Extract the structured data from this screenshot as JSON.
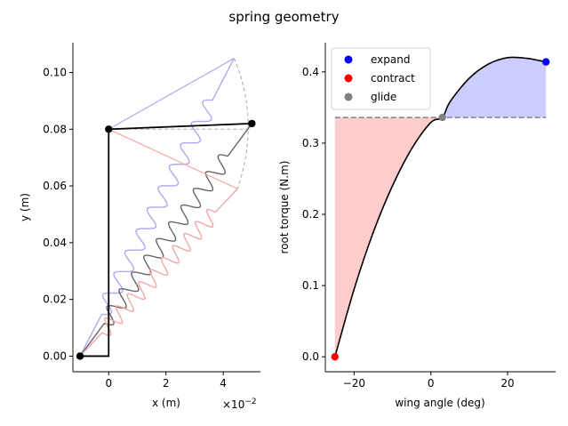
{
  "figure_title": "spring geometry",
  "chart_data": [
    {
      "type": "line",
      "xlabel": "x (m)",
      "ylabel": "y (m)",
      "x_offset_text": "×10",
      "x_offset_exp": "−2",
      "xlim": [
        -0.0125,
        0.053
      ],
      "ylim": [
        -0.0055,
        0.1105
      ],
      "xticks": [
        0,
        0.02,
        0.04
      ],
      "xtick_labels": [
        "0",
        "2",
        "4"
      ],
      "yticks": [
        0.0,
        0.02,
        0.04,
        0.06,
        0.08,
        0.1
      ],
      "ytick_labels": [
        "0.00",
        "0.02",
        "0.04",
        "0.06",
        "0.08",
        "0.10"
      ],
      "pivot": [
        -0.01,
        0.0
      ],
      "wing_root": [
        0.0,
        0.08
      ],
      "frame": {
        "color": "#000000",
        "points": [
          [
            -0.01,
            0.0
          ],
          [
            0.0,
            0.0
          ],
          [
            0.0,
            0.08
          ]
        ]
      },
      "arm_tip": [
        0.05,
        0.082
      ],
      "arc": {
        "color": "#aaaaaa",
        "points": [
          [
            0.0,
            0.08
          ],
          [
            0.0438,
            0.105
          ],
          [
            0.0495,
            0.082
          ],
          [
            0.045,
            0.059
          ],
          [
            0.0,
            0.08
          ]
        ]
      },
      "springs": [
        {
          "name": "expand",
          "color": "#aaaaee",
          "start": [
            -0.01,
            0.0
          ],
          "end": [
            0.0438,
            0.105
          ],
          "coils": 10
        },
        {
          "name": "glide",
          "color": "#666666",
          "start": [
            -0.01,
            0.0
          ],
          "end": [
            0.05,
            0.082
          ],
          "coils": 10
        },
        {
          "name": "contract",
          "color": "#f4a6a6",
          "start": [
            -0.01,
            0.0
          ],
          "end": [
            0.045,
            0.059
          ],
          "coils": 10
        }
      ],
      "markers": [
        [
          -0.01,
          0.0
        ],
        [
          0.0,
          0.08
        ],
        [
          0.05,
          0.082
        ]
      ]
    },
    {
      "type": "line",
      "xlabel": "wing angle (deg)",
      "ylabel": "root torque (N.m)",
      "xlim": [
        -27.5,
        32.5
      ],
      "ylim": [
        -0.021,
        0.441
      ],
      "xticks": [
        -20,
        0,
        20
      ],
      "xtick_labels": [
        "−20",
        "0",
        "20"
      ],
      "yticks": [
        0.0,
        0.1,
        0.2,
        0.3,
        0.4
      ],
      "ytick_labels": [
        "0.0",
        "0.1",
        "0.2",
        "0.3",
        "0.4"
      ],
      "curve": {
        "color": "#000000",
        "x": [
          -25,
          -20,
          -15,
          -10,
          -5,
          0,
          3,
          5,
          10,
          15,
          20,
          25,
          30
        ],
        "y": [
          0.0,
          0.095,
          0.175,
          0.24,
          0.292,
          0.329,
          0.336,
          0.358,
          0.391,
          0.411,
          0.42,
          0.419,
          0.414
        ]
      },
      "glide_level": 0.336,
      "fill_below": {
        "color": "#ffcccc",
        "x_range": [
          -25,
          3
        ]
      },
      "fill_above": {
        "color": "#ccccff",
        "x_range": [
          3,
          30
        ]
      },
      "points": [
        {
          "name": "expand",
          "color": "#0000ff",
          "x": 30,
          "y": 0.414
        },
        {
          "name": "contract",
          "color": "#ff0000",
          "x": -25,
          "y": 0.0
        },
        {
          "name": "glide",
          "color": "#808080",
          "x": 3,
          "y": 0.336
        }
      ],
      "legend": {
        "placement": "top-left",
        "entries": [
          "expand",
          "contract",
          "glide"
        ]
      }
    }
  ]
}
